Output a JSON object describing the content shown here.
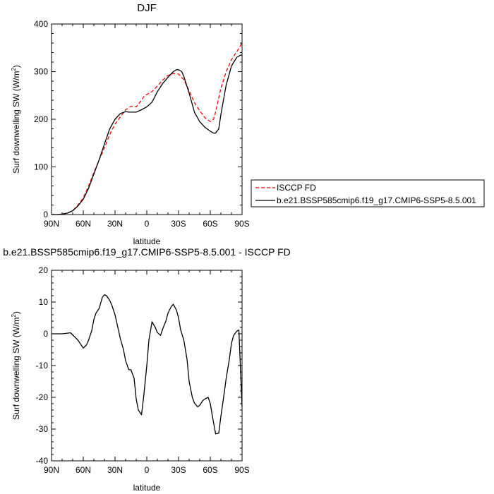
{
  "chart_data": [
    {
      "type": "line",
      "title": "DJF",
      "xlabel": "latitude",
      "ylabel": "Surf downwelling SW (W/m",
      "ylabel_sup": "2",
      "ylabel_end": ")",
      "xlim": [
        90,
        -90
      ],
      "ylim": [
        0,
        400
      ],
      "x_ticks": [
        90,
        60,
        30,
        0,
        -30,
        -60,
        -90
      ],
      "x_tick_labels": [
        "90N",
        "60N",
        "30N",
        "0",
        "30S",
        "60S",
        "90S"
      ],
      "y_ticks": [
        0,
        100,
        200,
        300,
        400
      ],
      "y_tick_labels": [
        "0",
        "100",
        "200",
        "300",
        "400"
      ],
      "legend_position": "right",
      "series": [
        {
          "name": "ISCCP FD",
          "color": "#ff0000",
          "dash": "dashed",
          "x": [
            90,
            85,
            80,
            75,
            70,
            65,
            60,
            55,
            50,
            45,
            40,
            35,
            30,
            25,
            20,
            15,
            12,
            10,
            5,
            2,
            0,
            -5,
            -10,
            -15,
            -20,
            -25,
            -30,
            -35,
            -40,
            -45,
            -50,
            -55,
            -60,
            -63,
            -65,
            -70,
            -75,
            -80,
            -85,
            -88,
            -90
          ],
          "y": [
            0,
            0,
            1,
            3,
            8,
            20,
            35,
            60,
            88,
            115,
            140,
            168,
            190,
            205,
            220,
            227,
            227,
            226,
            240,
            250,
            252,
            258,
            270,
            282,
            292,
            296,
            295,
            283,
            260,
            235,
            218,
            203,
            195,
            200,
            215,
            265,
            300,
            325,
            342,
            352,
            362
          ]
        },
        {
          "name": "b.e21.BSSP585cmip6.f19_g17.CMIP6-SSP5-8.5.001",
          "color": "#000000",
          "dash": "solid",
          "x": [
            90,
            85,
            80,
            75,
            70,
            65,
            60,
            55,
            50,
            45,
            40,
            35,
            30,
            25,
            20,
            17,
            15,
            10,
            5,
            0,
            -5,
            -10,
            -15,
            -20,
            -25,
            -28,
            -30,
            -33,
            -35,
            -40,
            -45,
            -50,
            -55,
            -60,
            -63,
            -65,
            -68,
            -70,
            -75,
            -80,
            -85,
            -88,
            -90
          ],
          "y": [
            0,
            0,
            1,
            3,
            8,
            18,
            32,
            55,
            85,
            115,
            148,
            180,
            200,
            212,
            216,
            215,
            215,
            215,
            220,
            226,
            236,
            258,
            275,
            288,
            300,
            304,
            304,
            300,
            290,
            255,
            215,
            195,
            183,
            175,
            171,
            171,
            180,
            210,
            272,
            312,
            330,
            334,
            335
          ]
        }
      ]
    },
    {
      "type": "line",
      "title": "b.e21.BSSP585cmip6.f19_g17.CMIP6-SSP5-8.5.001 - ISCCP FD",
      "xlabel": "latitude",
      "ylabel": "Surf downwelling SW (W/m",
      "ylabel_sup": "2",
      "ylabel_end": ")",
      "xlim": [
        90,
        -90
      ],
      "ylim": [
        -40,
        20
      ],
      "x_ticks": [
        90,
        60,
        30,
        0,
        -30,
        -60,
        -90
      ],
      "x_tick_labels": [
        "90N",
        "60N",
        "30N",
        "0",
        "30S",
        "60S",
        "90S"
      ],
      "y_ticks": [
        -40,
        -30,
        -20,
        -10,
        0,
        10,
        20
      ],
      "y_tick_labels": [
        "-40",
        "-30",
        "-20",
        "-10",
        "0",
        "10",
        "20"
      ],
      "series": [
        {
          "color": "#000000",
          "dash": "solid",
          "x": [
            90,
            85,
            80,
            75,
            72,
            68,
            65,
            62,
            60,
            57,
            55,
            52,
            50,
            48,
            45,
            42,
            40,
            38,
            35,
            33,
            30,
            28,
            25,
            22,
            20,
            17,
            15,
            12,
            10,
            8,
            5,
            3,
            0,
            -2,
            -5,
            -8,
            -10,
            -13,
            -15,
            -18,
            -20,
            -23,
            -25,
            -28,
            -30,
            -32,
            -35,
            -38,
            -40,
            -43,
            -45,
            -48,
            -50,
            -53,
            -55,
            -58,
            -60,
            -62,
            -65,
            -68,
            -70,
            -73,
            -75,
            -78,
            -80,
            -82,
            -85,
            -87,
            -90
          ],
          "y": [
            0,
            0,
            0,
            0.2,
            0.3,
            -1,
            -2,
            -3.5,
            -4.5,
            -3.5,
            -2,
            1,
            4.5,
            6.5,
            8,
            11.5,
            12.3,
            12,
            10.5,
            9,
            6,
            3,
            -1.5,
            -5,
            -8.5,
            -11.3,
            -11.3,
            -14,
            -20.5,
            -24,
            -25.5,
            -20,
            -10,
            -2,
            3.8,
            2,
            0.4,
            -0.5,
            1.5,
            4,
            6.5,
            8.5,
            9.3,
            7.5,
            5,
            1.2,
            -2,
            -8,
            -15,
            -20,
            -21.8,
            -23,
            -22.5,
            -21,
            -20.5,
            -20,
            -22,
            -26,
            -31.5,
            -31.3,
            -26,
            -19,
            -14,
            -8,
            -3,
            -0.5,
            0.8,
            1.2,
            -23
          ]
        }
      ]
    }
  ]
}
